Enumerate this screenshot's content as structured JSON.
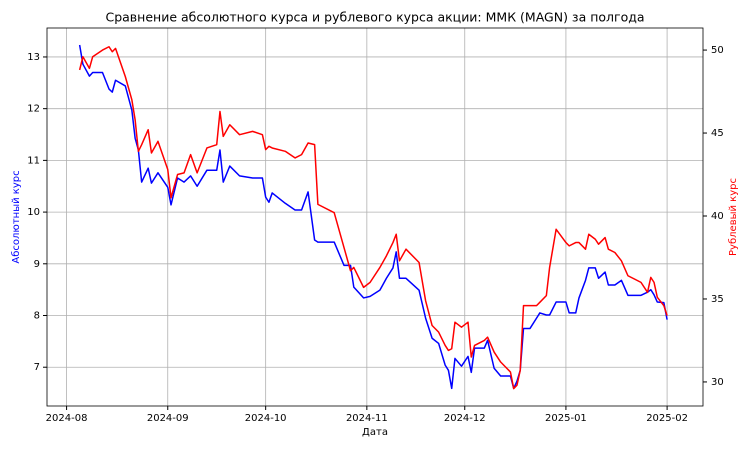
{
  "chart_data": {
    "type": "line",
    "title": "Сравнение абсолютного курса и рублевого курса акции: ММК (MAGN) за полгода",
    "x_label": "Дата",
    "y_label": "Абсолютный курс",
    "y2_label": "Рублевый курс",
    "x": [
      "2024-08-05",
      "2024-08-06",
      "2024-08-08",
      "2024-08-09",
      "2024-08-12",
      "2024-08-14",
      "2024-08-15",
      "2024-08-16",
      "2024-08-19",
      "2024-08-21",
      "2024-08-22",
      "2024-08-23",
      "2024-08-24",
      "2024-08-26",
      "2024-08-27",
      "2024-08-29",
      "2024-09-01",
      "2024-09-02",
      "2024-09-04",
      "2024-09-06",
      "2024-09-08",
      "2024-09-10",
      "2024-09-13",
      "2024-09-16",
      "2024-09-17",
      "2024-09-18",
      "2024-09-20",
      "2024-09-23",
      "2024-09-27",
      "2024-09-30",
      "2024-10-01",
      "2024-10-02",
      "2024-10-03",
      "2024-10-07",
      "2024-10-10",
      "2024-10-12",
      "2024-10-14",
      "2024-10-16",
      "2024-10-17",
      "2024-10-22",
      "2024-10-25",
      "2024-10-27",
      "2024-10-28",
      "2024-10-31",
      "2024-11-02",
      "2024-11-05",
      "2024-11-07",
      "2024-11-09",
      "2024-11-10",
      "2024-11-11",
      "2024-11-13",
      "2024-11-17",
      "2024-11-19",
      "2024-11-21",
      "2024-11-23",
      "2024-11-25",
      "2024-11-26",
      "2024-11-27",
      "2024-11-28",
      "2024-11-30",
      "2024-12-02",
      "2024-12-03",
      "2024-12-04",
      "2024-12-07",
      "2024-12-08",
      "2024-12-10",
      "2024-12-12",
      "2024-12-15",
      "2024-12-16",
      "2024-12-17",
      "2024-12-18",
      "2024-12-19",
      "2024-12-21",
      "2024-12-23",
      "2024-12-24",
      "2024-12-26",
      "2024-12-27",
      "2024-12-29",
      "2025-01-01",
      "2025-01-02",
      "2025-01-04",
      "2025-01-05",
      "2025-01-07",
      "2025-01-08",
      "2025-01-10",
      "2025-01-11",
      "2025-01-13",
      "2025-01-14",
      "2025-01-16",
      "2025-01-18",
      "2025-01-20",
      "2025-01-24",
      "2025-01-26",
      "2025-01-27",
      "2025-01-28",
      "2025-01-29",
      "2025-01-31",
      "2025-02-01"
    ],
    "series": [
      {
        "name": "Абсолютный курс",
        "color": "#0000ff",
        "axis": "y",
        "values": [
          13.23,
          12.86,
          12.63,
          12.7,
          12.7,
          12.38,
          12.32,
          12.55,
          12.44,
          11.97,
          11.43,
          11.2,
          10.58,
          10.85,
          10.56,
          10.76,
          10.48,
          10.14,
          10.66,
          10.58,
          10.7,
          10.5,
          10.81,
          10.81,
          11.2,
          10.58,
          10.89,
          10.7,
          10.66,
          10.66,
          10.29,
          10.19,
          10.37,
          10.17,
          10.04,
          10.04,
          10.39,
          9.46,
          9.42,
          9.42,
          8.97,
          8.97,
          8.55,
          8.34,
          8.37,
          8.49,
          8.72,
          8.92,
          9.23,
          8.72,
          8.72,
          8.49,
          7.95,
          7.56,
          7.46,
          7.04,
          6.94,
          6.59,
          7.17,
          7.02,
          7.21,
          6.9,
          7.37,
          7.37,
          7.52,
          6.98,
          6.83,
          6.83,
          6.59,
          6.73,
          6.94,
          7.75,
          7.75,
          7.95,
          8.05,
          8.01,
          8.01,
          8.26,
          8.26,
          8.05,
          8.05,
          8.34,
          8.68,
          8.92,
          8.92,
          8.72,
          8.84,
          8.59,
          8.59,
          8.68,
          8.39,
          8.39,
          8.45,
          8.5,
          8.4,
          8.26,
          8.25,
          7.92
        ]
      },
      {
        "name": "Рублевый курс",
        "color": "#ff0000",
        "axis": "y2",
        "values": [
          48.8,
          49.6,
          48.9,
          49.6,
          50.0,
          50.2,
          49.9,
          50.1,
          48.4,
          47.0,
          45.8,
          43.9,
          44.3,
          45.2,
          43.8,
          44.5,
          42.8,
          41.1,
          42.5,
          42.6,
          43.7,
          42.6,
          44.1,
          44.3,
          46.3,
          44.8,
          45.5,
          44.9,
          45.1,
          44.9,
          44.0,
          44.2,
          44.1,
          43.9,
          43.5,
          43.7,
          44.4,
          44.3,
          40.7,
          40.2,
          38.1,
          36.7,
          36.9,
          35.7,
          36.0,
          36.9,
          37.6,
          38.4,
          38.9,
          37.3,
          38.0,
          37.2,
          34.9,
          33.4,
          33.0,
          32.2,
          31.9,
          32.0,
          33.6,
          33.3,
          33.6,
          31.5,
          32.2,
          32.5,
          32.7,
          31.8,
          31.2,
          30.6,
          29.6,
          29.8,
          30.7,
          34.6,
          34.6,
          34.6,
          34.8,
          35.2,
          36.9,
          39.2,
          38.4,
          38.2,
          38.4,
          38.4,
          38.0,
          38.9,
          38.6,
          38.3,
          38.7,
          38.0,
          37.8,
          37.3,
          36.4,
          36.0,
          35.4,
          36.3,
          36.0,
          35.1,
          34.6,
          34.0
        ]
      }
    ],
    "xlim": [
      "2024-07-26",
      "2025-02-12"
    ],
    "xticks": [
      {
        "value": "2024-08-01",
        "label": "2024-08"
      },
      {
        "value": "2024-09-01",
        "label": "2024-09"
      },
      {
        "value": "2024-10-01",
        "label": "2024-10"
      },
      {
        "value": "2024-11-01",
        "label": "2024-11"
      },
      {
        "value": "2024-12-01",
        "label": "2024-12"
      },
      {
        "value": "2025-01-01",
        "label": "2025-01"
      },
      {
        "value": "2025-02-01",
        "label": "2025-02"
      }
    ],
    "ylim": [
      6.25,
      13.56
    ],
    "yticks": [
      7,
      8,
      9,
      10,
      11,
      12,
      13
    ],
    "y2lim": [
      28.55,
      51.33
    ],
    "y2ticks": [
      30,
      35,
      40,
      45,
      50
    ],
    "grid": true
  }
}
